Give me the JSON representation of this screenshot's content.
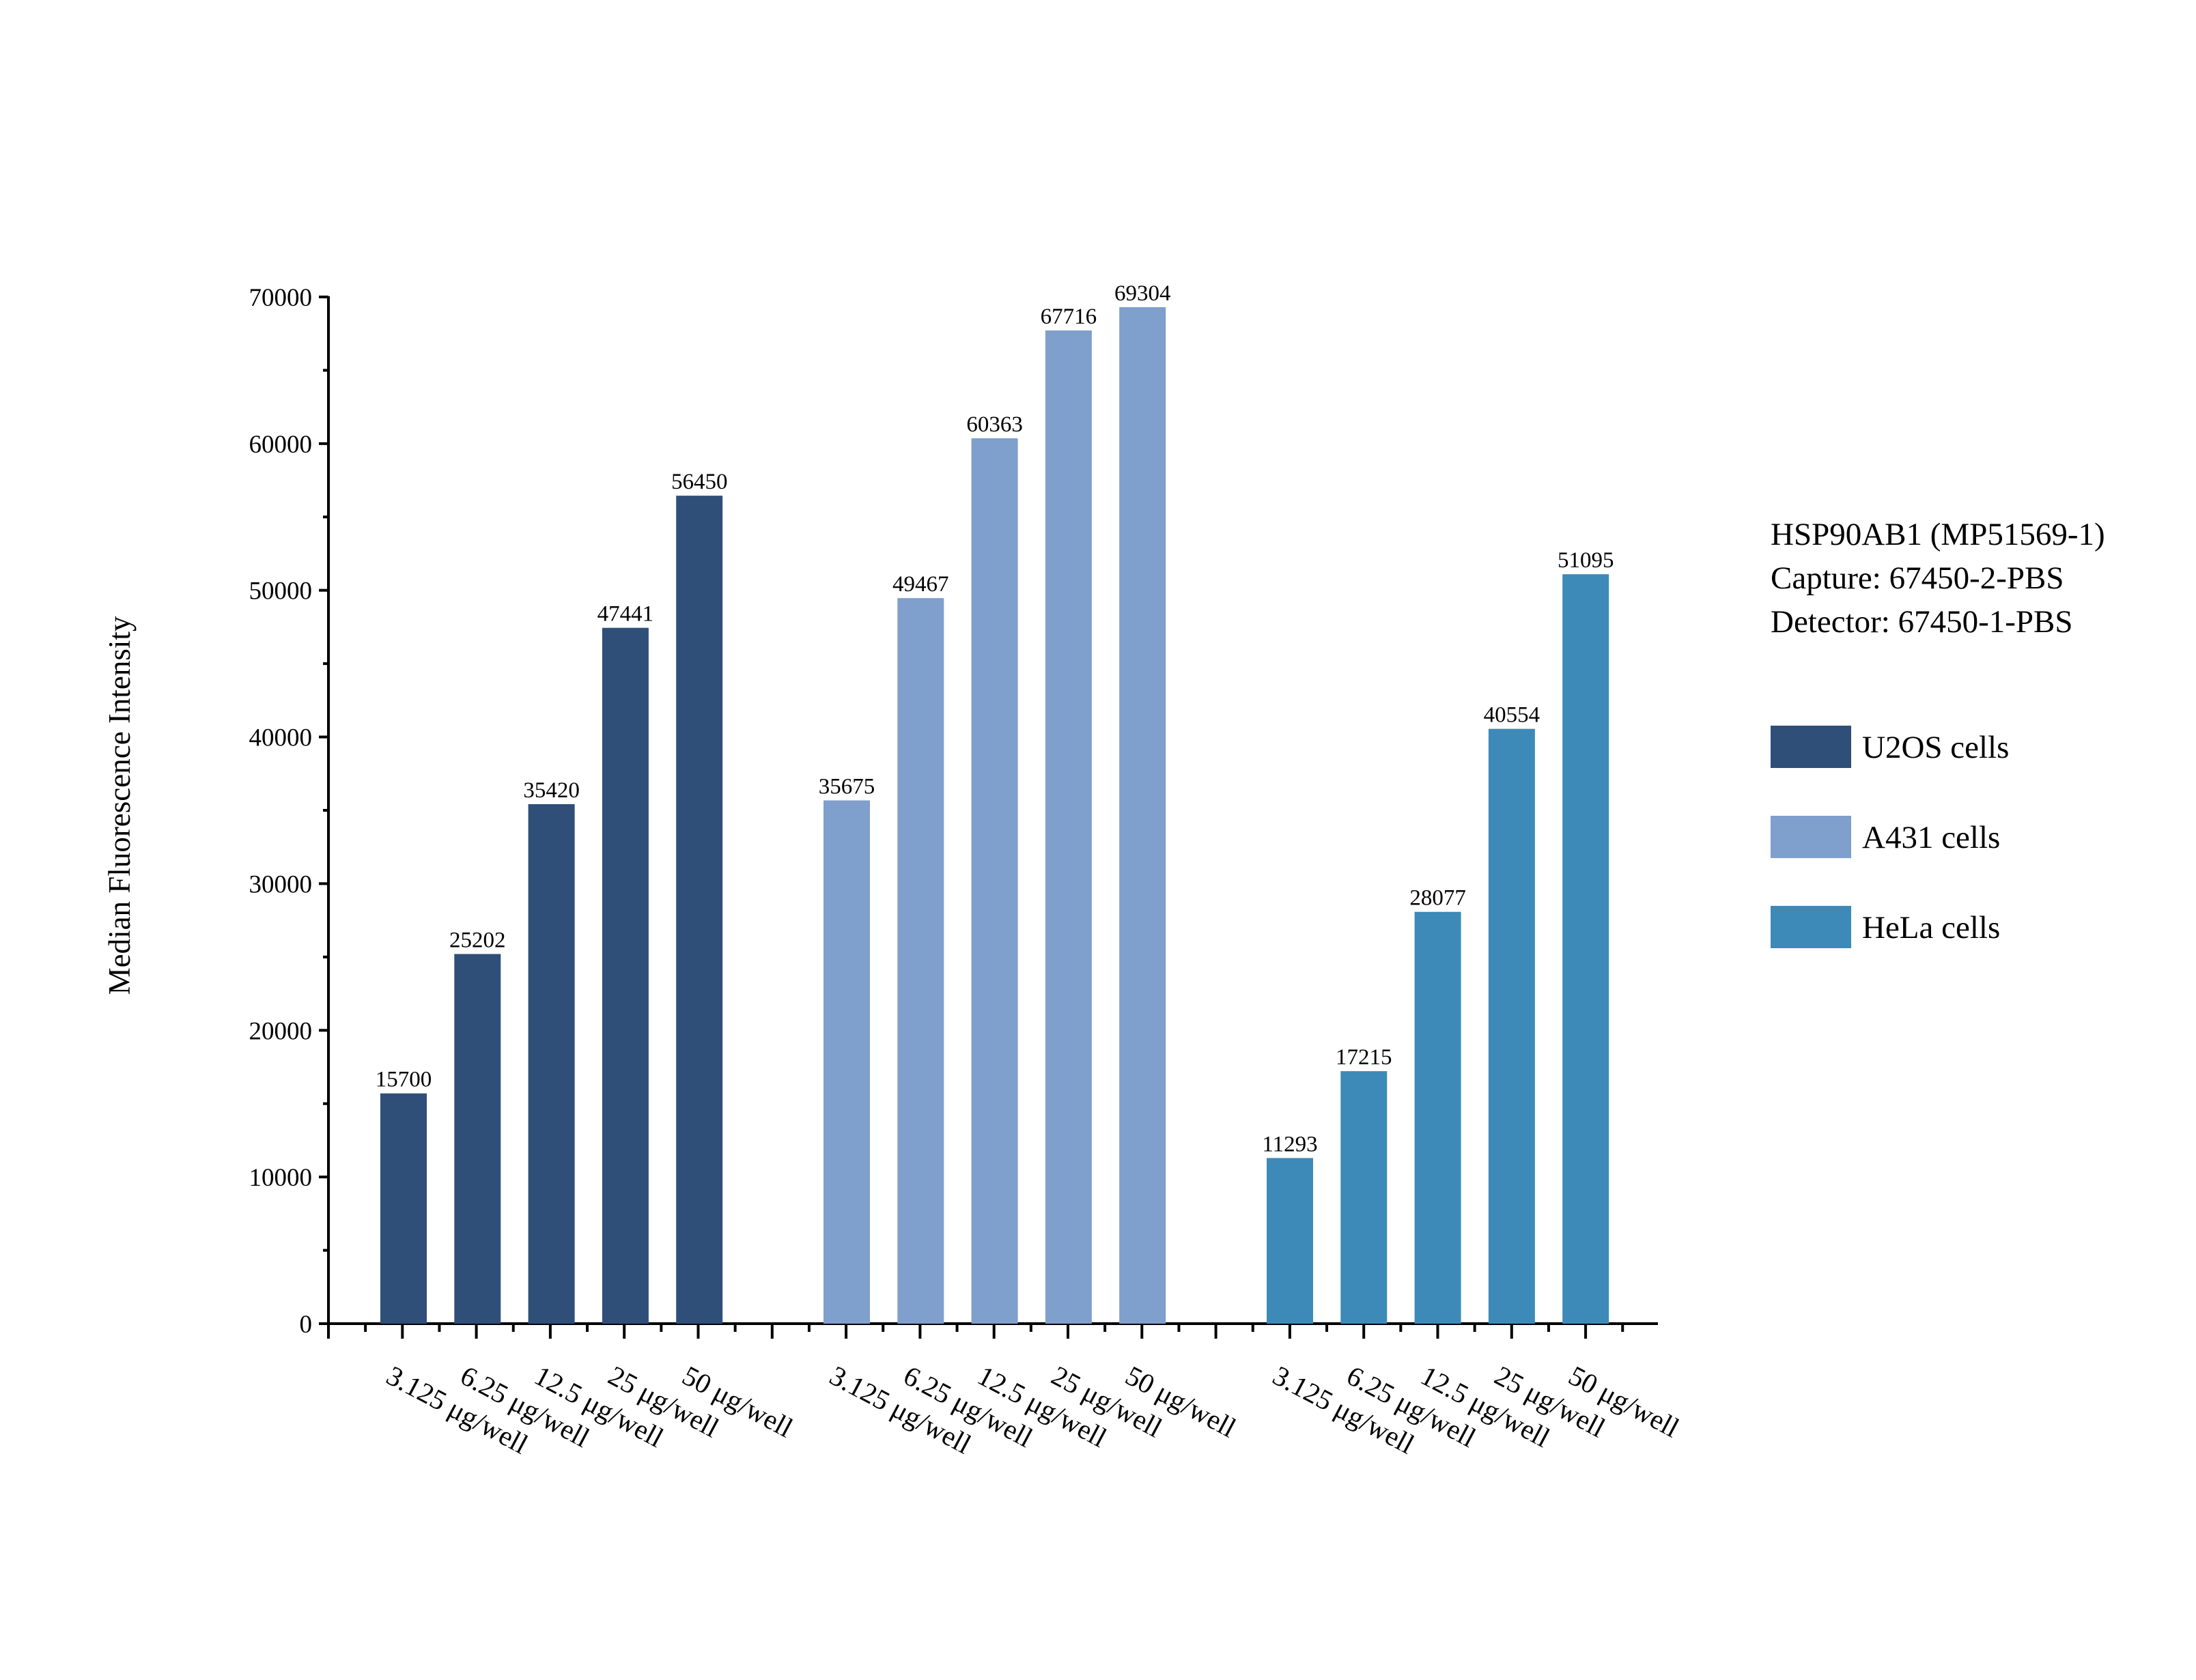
{
  "chart_data": {
    "type": "bar",
    "title": "",
    "xlabel": "",
    "ylabel": "Median Fluorescence Intensity",
    "ylim": [
      0,
      70000
    ],
    "yticks": [
      0,
      10000,
      20000,
      30000,
      40000,
      50000,
      60000,
      70000
    ],
    "grid": false,
    "legend_position": "right",
    "legend_title_lines": [
      "HSP90AB1 (MP51569-1)",
      "Capture: 67450-2-PBS",
      "Detector: 67450-1-PBS"
    ],
    "categories": [
      "3.125 μg/well",
      "6.25 μg/well",
      "12.5 μg/well",
      "25 μg/well",
      "50 μg/well"
    ],
    "series": [
      {
        "name": "U2OS cells",
        "color": "#2f4f79",
        "values": [
          15700,
          25202,
          35420,
          47441,
          56450
        ]
      },
      {
        "name": "A431 cells",
        "color": "#7f9fcc",
        "values": [
          35675,
          49467,
          60363,
          67716,
          69304
        ]
      },
      {
        "name": "HeLa cells",
        "color": "#3d8ab8",
        "values": [
          11293,
          17215,
          28077,
          40554,
          51095
        ]
      }
    ]
  }
}
